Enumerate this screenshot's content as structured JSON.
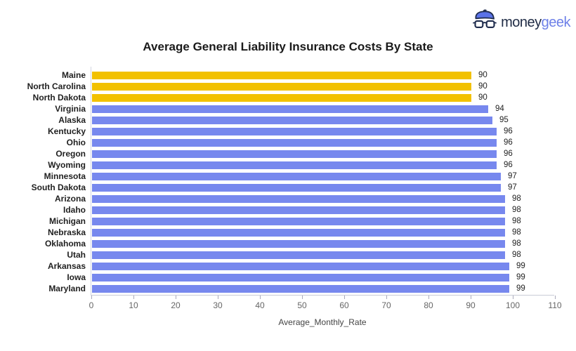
{
  "logo": {
    "icon": "geek-face-icon",
    "text_money": "money",
    "text_geek": "geek",
    "money_color": "#1e2a44",
    "geek_color": "#6d80e8"
  },
  "chart_data": {
    "type": "bar",
    "orientation": "horizontal",
    "title": "Average General Liability Insurance Costs By State",
    "xlabel": "Average_Monthly_Rate",
    "xlim": [
      0,
      110
    ],
    "xticks": [
      0,
      10,
      20,
      30,
      40,
      50,
      60,
      70,
      80,
      90,
      100,
      110
    ],
    "grid": false,
    "legend": false,
    "value_labels_shown": true,
    "categories": [
      "Maine",
      "North Carolina",
      "North Dakota",
      "Virginia",
      "Alaska",
      "Kentucky",
      "Ohio",
      "Oregon",
      "Wyoming",
      "Minnesota",
      "South Dakota",
      "Arizona",
      "Idaho",
      "Michigan",
      "Nebraska",
      "Oklahoma",
      "Utah",
      "Arkansas",
      "Iowa",
      "Maryland"
    ],
    "values": [
      90,
      90,
      90,
      94,
      95,
      96,
      96,
      96,
      96,
      97,
      97,
      98,
      98,
      98,
      98,
      98,
      98,
      99,
      99,
      99
    ],
    "highlighted_categories": [
      "Maine",
      "North Carolina",
      "North Dakota"
    ],
    "colors": {
      "highlight": "#F2C100",
      "default": "#7788EE"
    }
  }
}
